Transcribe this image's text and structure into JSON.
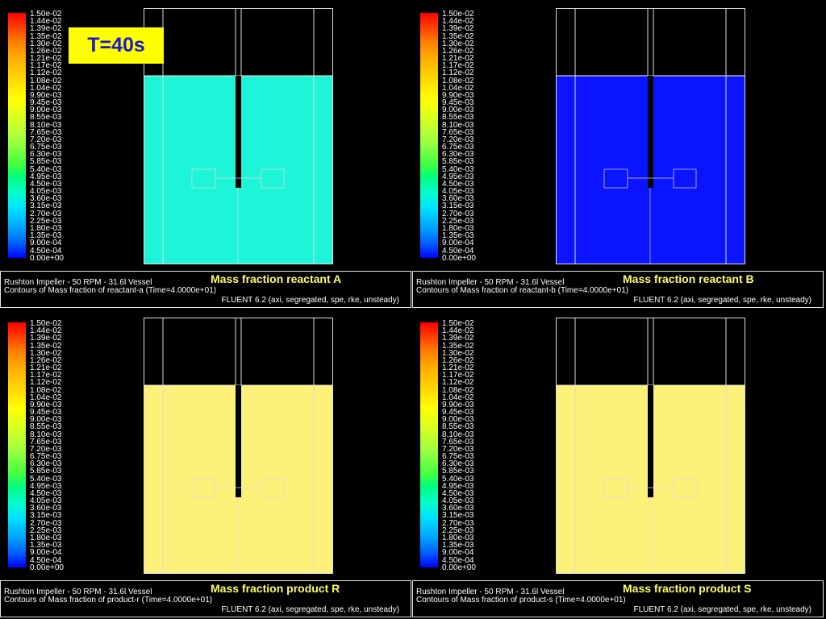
{
  "time_badge": "T=40s",
  "colorbar_labels": [
    "1.50e-02",
    "1.44e-02",
    "1.39e-02",
    "1.35e-02",
    "1.30e-02",
    "1.26e-02",
    "1.21e-02",
    "1.17e-02",
    "1.12e-02",
    "1.08e-02",
    "1.04e-02",
    "9.90e-03",
    "9.45e-03",
    "9.00e-03",
    "8.55e-03",
    "8.10e-03",
    "7.65e-03",
    "7.20e-03",
    "6.75e-03",
    "6.30e-03",
    "5.85e-03",
    "5.40e-03",
    "4.95e-03",
    "4.50e-03",
    "4.05e-03",
    "3.60e-03",
    "3.15e-03",
    "2.70e-03",
    "2.25e-03",
    "1.80e-03",
    "1.35e-03",
    "9.00e-04",
    "4.50e-04",
    "0.00e+00"
  ],
  "colors": {
    "reactant_a_fill": "#1ef4d8",
    "reactant_b_fill": "#0a14ff",
    "product_r_fill": "#fcf27a",
    "product_s_fill": "#fcf27a",
    "title_color": "#ffff66"
  },
  "panels": [
    {
      "title": "Mass fraction reactant A",
      "line1": "Rushton Impeller - 50 RPM - 31.6l Vessel",
      "line2": "Contours of Mass fraction of reactant-a  (Time=4.0000e+01)",
      "line3": "FLUENT 6.2 (axi, segregated, spe, rke, unsteady)"
    },
    {
      "title": "Mass fraction reactant B",
      "line1": "Rushton Impeller - 50 RPM - 31.6l Vessel",
      "line2": "Contours of Mass fraction of reactant-b  (Time=4.0000e+01)",
      "line3": "FLUENT 6.2 (axi, segregated, spe, rke, unsteady)"
    },
    {
      "title": "Mass fraction product R",
      "line1": "Rushton Impeller - 50 RPM - 31.6l Vessel",
      "line2": "Contours of Mass fraction of product-r  (Time=4.0000e+01)",
      "line3": "FLUENT 6.2 (axi, segregated, spe, rke, unsteady)"
    },
    {
      "title": "Mass fraction product S",
      "line1": "Rushton Impeller - 50 RPM - 31.6l Vessel",
      "line2": "Contours of Mass fraction of product-s  (Time=4.0000e+01)",
      "line3": "FLUENT 6.2 (axi, segregated, spe, rke, unsteady)"
    }
  ]
}
